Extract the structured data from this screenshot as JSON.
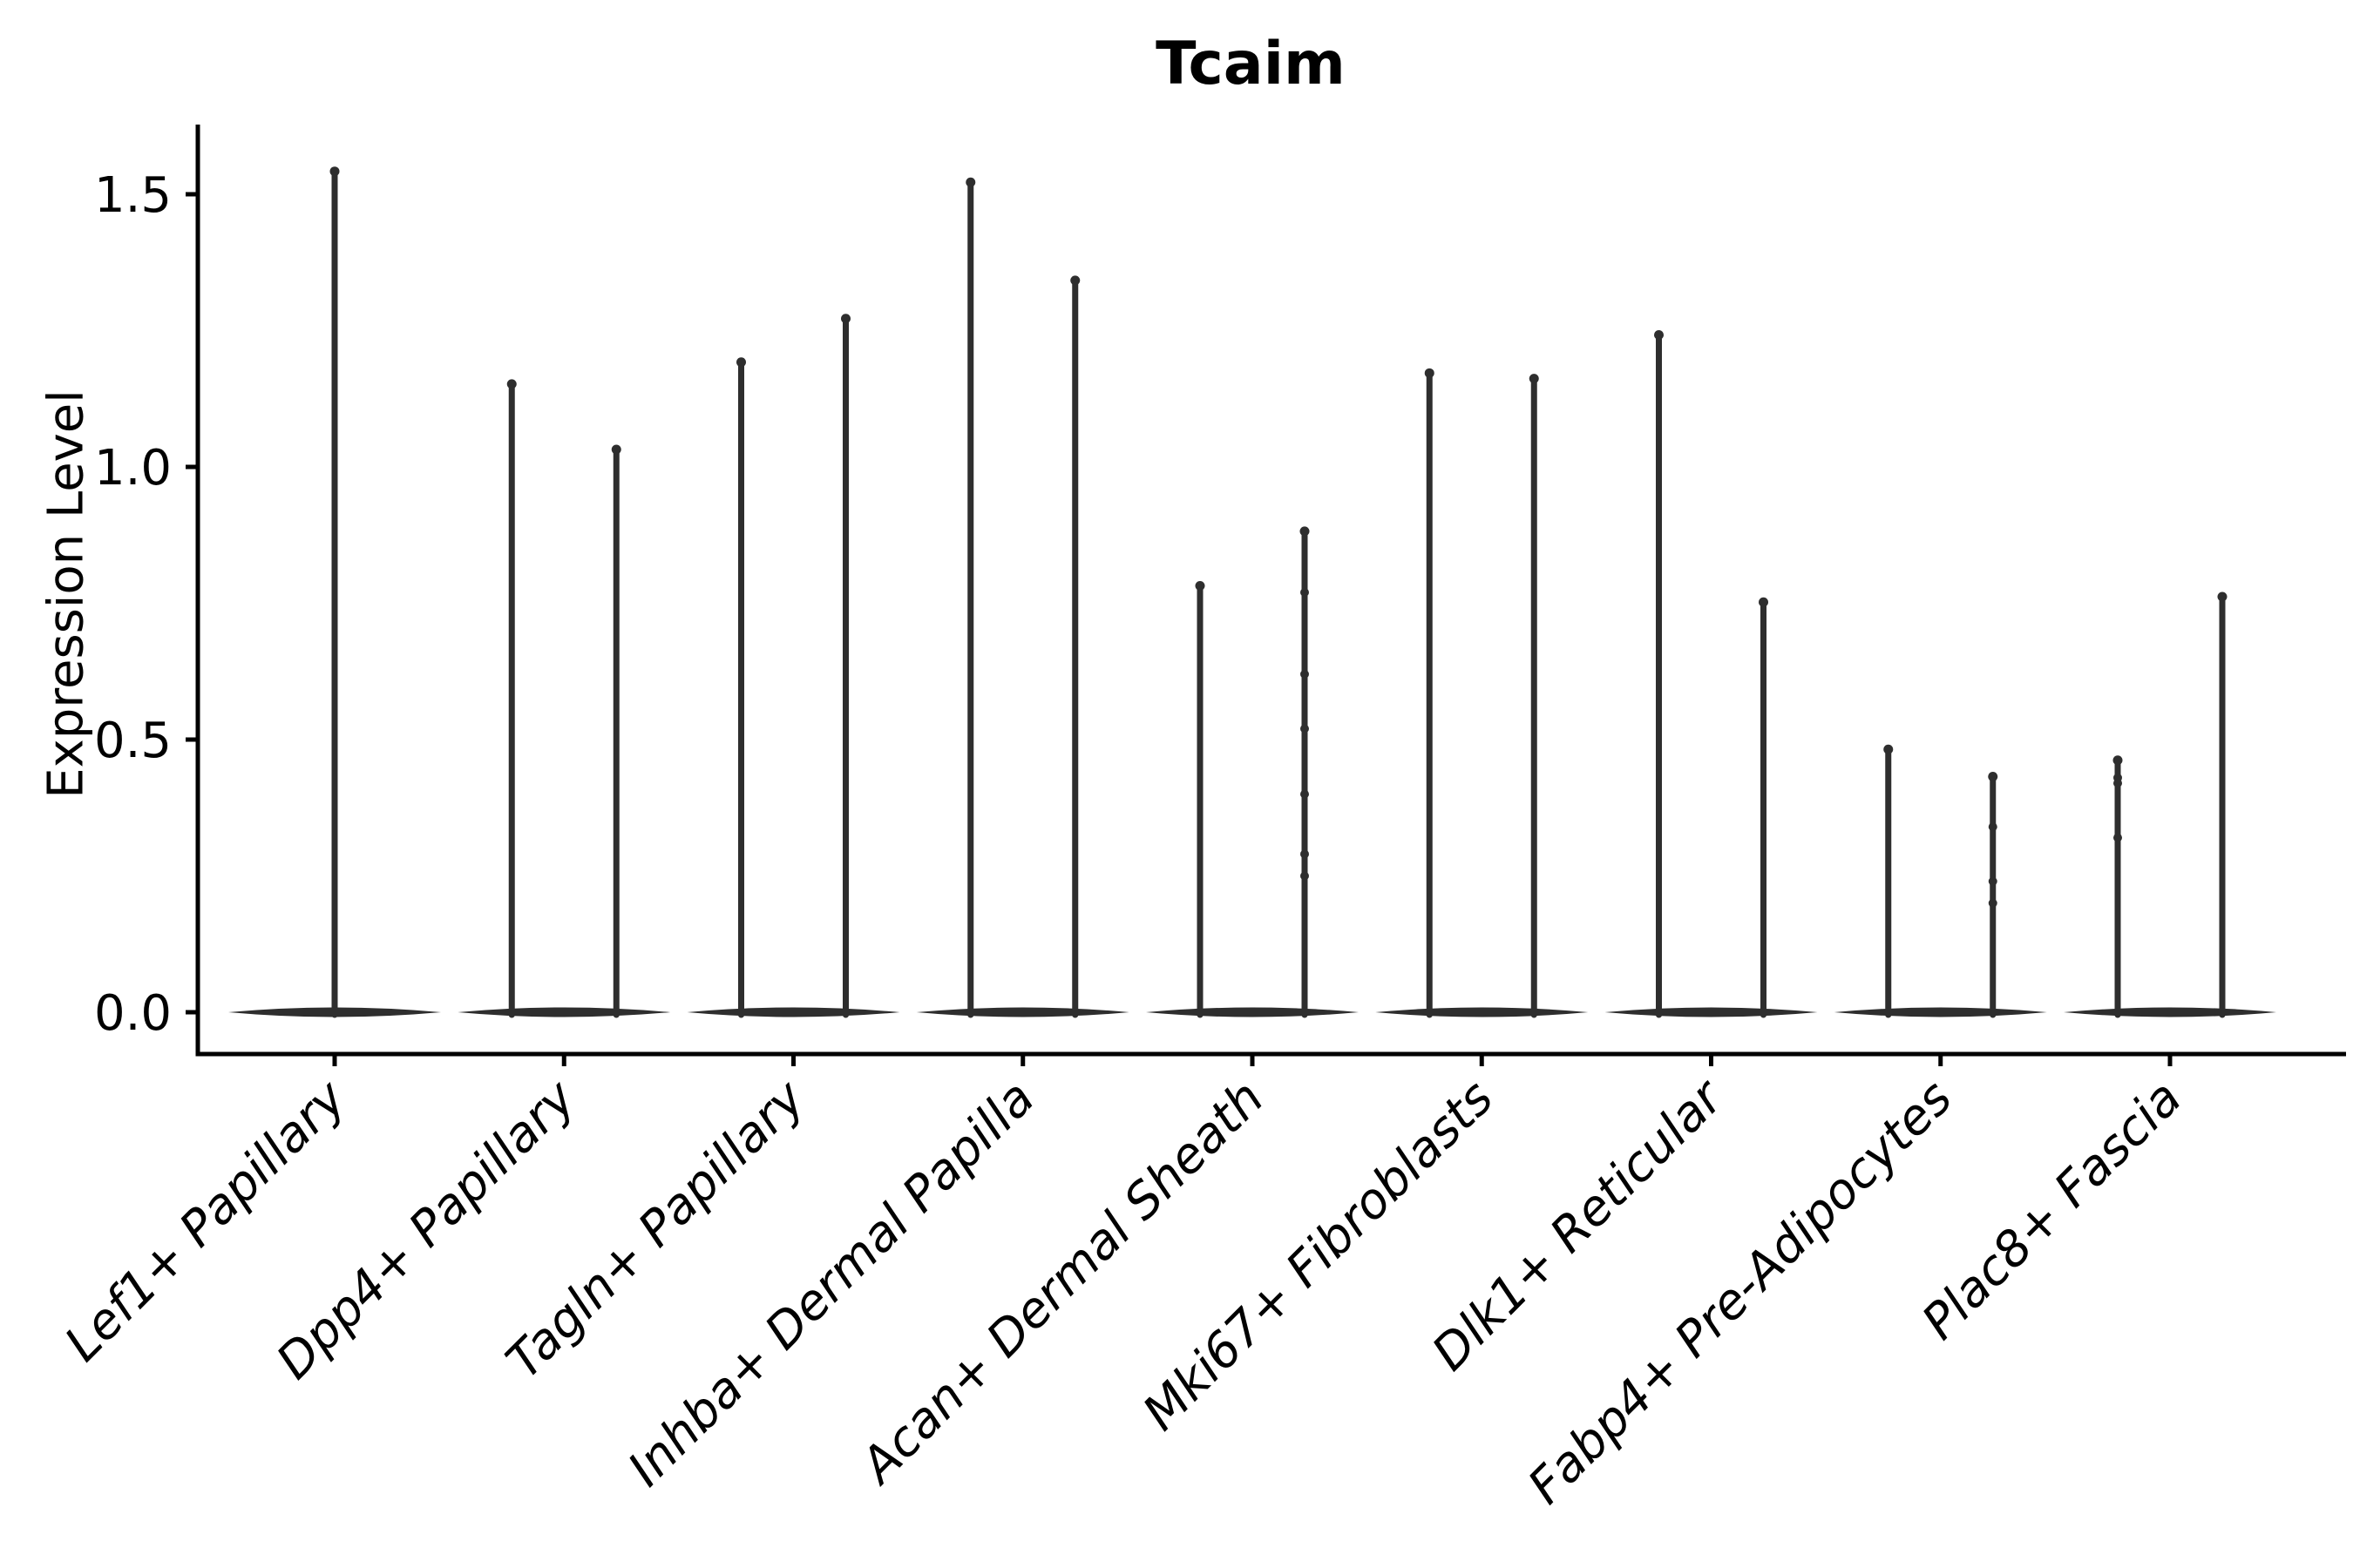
{
  "chart_data": {
    "type": "violin",
    "title": "Tcaim",
    "ylabel": "Expression Level",
    "xlabel": "",
    "y_tick_labels": [
      "0.0",
      "0.5",
      "1.0",
      "1.5"
    ],
    "y_tick_values": [
      0.0,
      0.5,
      1.0,
      1.5
    ],
    "ylim": [
      -0.08,
      1.63
    ],
    "grid": false,
    "legend": "none",
    "colors": {
      "violin": "#2e2e2e",
      "axis": "#000000",
      "background": "#ffffff"
    },
    "categories": [
      "Lef1+ Papillary",
      "Dpp4+ Papillary",
      "Tagln+ Papillary",
      "Inhba+ Dermal Papilla",
      "Acan+ Dermal Sheath",
      "Mki67+ Fibroblasts",
      "Dlk1+ Reticular",
      "Fabp4+ Pre-Adipocytes",
      "Plac8+ Fascia"
    ],
    "violins": [
      {
        "maxima": [
          1.55
        ],
        "dots": [
          []
        ]
      },
      {
        "maxima": [
          1.16,
          1.04
        ],
        "dots": [
          [],
          []
        ]
      },
      {
        "maxima": [
          1.2,
          1.28
        ],
        "dots": [
          [],
          []
        ]
      },
      {
        "maxima": [
          1.53,
          1.35
        ],
        "dots": [
          [],
          []
        ]
      },
      {
        "maxima": [
          0.79,
          0.89
        ],
        "dots": [
          [],
          [
            0.77,
            0.62,
            0.52,
            0.4,
            0.29,
            0.25
          ]
        ]
      },
      {
        "maxima": [
          1.18,
          1.17
        ],
        "dots": [
          [],
          []
        ]
      },
      {
        "maxima": [
          1.25,
          0.76
        ],
        "dots": [
          [],
          []
        ]
      },
      {
        "maxima": [
          0.49,
          0.44
        ],
        "dots": [
          [],
          [
            0.34,
            0.24,
            0.2
          ]
        ]
      },
      {
        "maxima": [
          0.47,
          0.77
        ],
        "dots": [
          [
            0.43,
            0.42,
            0.32
          ],
          []
        ]
      }
    ]
  }
}
